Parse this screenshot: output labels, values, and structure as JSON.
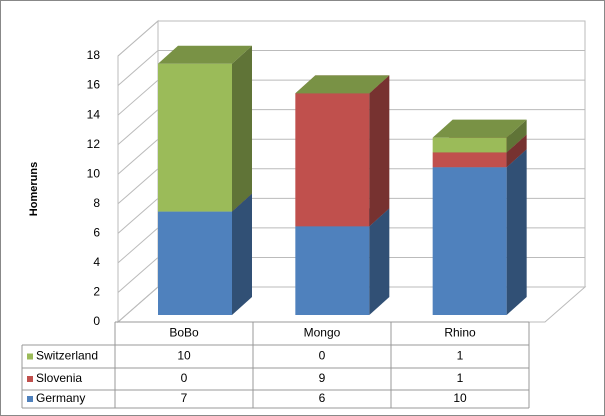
{
  "chart_data": {
    "type": "bar3d_stacked",
    "y_label": "Homeruns",
    "categories": [
      "BoBo",
      "Mongo",
      "Rhino"
    ],
    "series": [
      {
        "name": "Germany",
        "color": "#4f81bd",
        "values": [
          7,
          6,
          10
        ]
      },
      {
        "name": "Slovenia",
        "color": "#c0504d",
        "values": [
          0,
          9,
          1
        ]
      },
      {
        "name": "Switzerland",
        "color": "#9bbb59",
        "values": [
          10,
          0,
          1
        ]
      }
    ],
    "ylim": [
      0,
      18
    ],
    "yticks": [
      0,
      2,
      4,
      6,
      8,
      10,
      12,
      14,
      16,
      18
    ],
    "grid": true,
    "data_table": true
  }
}
